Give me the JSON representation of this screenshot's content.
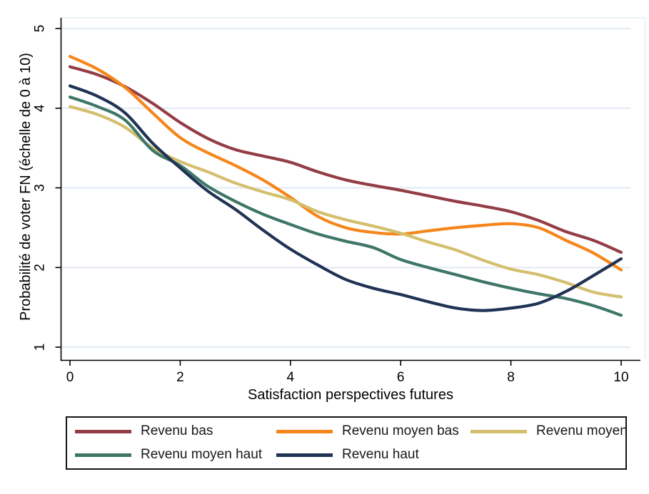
{
  "chart_data": {
    "type": "line",
    "title": "",
    "xlabel": "Satisfaction perspectives futures",
    "ylabel": "Probabilité de voter FN (échelle de 0 à 10)",
    "xlim": [
      0,
      10
    ],
    "ylim": [
      1,
      5
    ],
    "xticks": [
      0,
      2,
      4,
      6,
      8,
      10
    ],
    "yticks": [
      1,
      2,
      3,
      4,
      5
    ],
    "grid": "horizontal-major",
    "gridline_color": "#e6edf3",
    "axis_color": "#000000",
    "legend_position": "bottom-box",
    "x": [
      0,
      0.5,
      1,
      1.5,
      2,
      2.5,
      3,
      3.5,
      4,
      4.5,
      5,
      5.5,
      6,
      6.5,
      7,
      7.5,
      8,
      8.5,
      9,
      9.5,
      10
    ],
    "series": [
      {
        "name": "Revenu bas",
        "color": "#933d46",
        "values": [
          4.52,
          4.42,
          4.27,
          4.06,
          3.82,
          3.62,
          3.48,
          3.4,
          3.32,
          3.2,
          3.1,
          3.03,
          2.97,
          2.9,
          2.83,
          2.77,
          2.7,
          2.59,
          2.45,
          2.34,
          2.19
        ]
      },
      {
        "name": "Revenu moyen bas",
        "color": "#f5861b",
        "values": [
          4.65,
          4.49,
          4.26,
          3.94,
          3.63,
          3.44,
          3.28,
          3.1,
          2.88,
          2.64,
          2.5,
          2.44,
          2.42,
          2.46,
          2.5,
          2.53,
          2.55,
          2.5,
          2.34,
          2.18,
          1.97
        ]
      },
      {
        "name": "Revenu moyen",
        "color": "#d4bf6e",
        "values": [
          4.02,
          3.92,
          3.76,
          3.5,
          3.33,
          3.2,
          3.06,
          2.95,
          2.85,
          2.7,
          2.6,
          2.52,
          2.43,
          2.32,
          2.22,
          2.09,
          1.98,
          1.91,
          1.81,
          1.69,
          1.63
        ]
      },
      {
        "name": "Revenu moyen haut",
        "color": "#3e7668",
        "values": [
          4.14,
          4.02,
          3.85,
          3.47,
          3.28,
          3.02,
          2.83,
          2.67,
          2.54,
          2.42,
          2.33,
          2.25,
          2.1,
          2.0,
          1.91,
          1.82,
          1.74,
          1.67,
          1.61,
          1.52,
          1.4
        ]
      },
      {
        "name": "Revenu haut",
        "color": "#203354",
        "values": [
          4.28,
          4.15,
          3.94,
          3.56,
          3.25,
          2.96,
          2.73,
          2.47,
          2.23,
          2.03,
          1.85,
          1.74,
          1.66,
          1.57,
          1.49,
          1.46,
          1.49,
          1.55,
          1.7,
          1.9,
          2.11
        ]
      }
    ]
  }
}
